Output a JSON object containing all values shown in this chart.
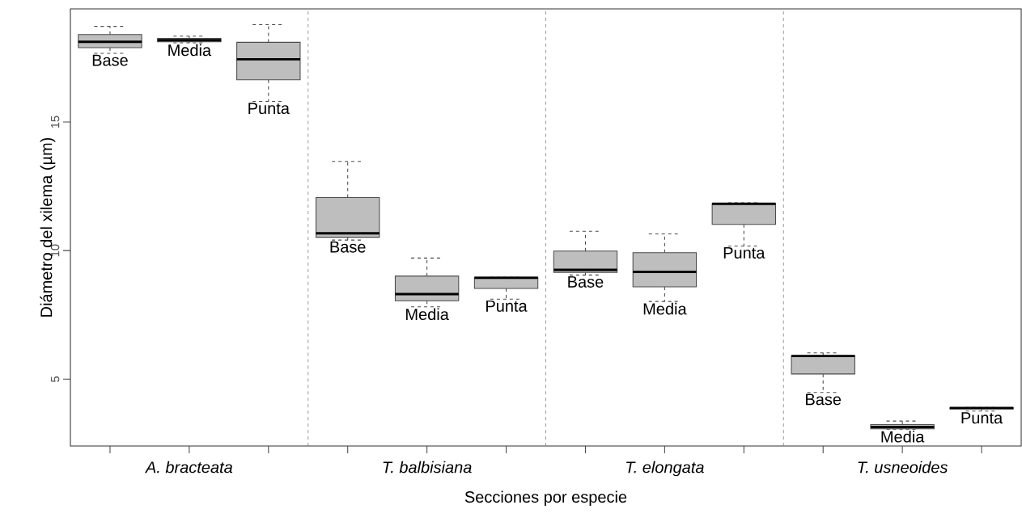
{
  "chart_data": {
    "type": "box",
    "xlabel": "Secciones por especie",
    "ylabel": "Diámetro del xilema (µm)",
    "categories": [
      "A. bracteata",
      "T. balbisiana",
      "T. elongata",
      "T. usneoides"
    ],
    "series": [
      {
        "name": "Base",
        "color": "#bebebe",
        "boxes": [
          {
            "low": 17.67,
            "q1": 17.89,
            "median": 18.12,
            "q3": 18.4,
            "high": 18.72
          },
          {
            "low": 10.41,
            "q1": 10.52,
            "median": 10.67,
            "q3": 12.06,
            "high": 13.47
          },
          {
            "low": 9.05,
            "q1": 9.15,
            "median": 9.25,
            "q3": 9.98,
            "high": 10.75
          },
          {
            "low": 4.48,
            "q1": 5.2,
            "median": 5.9,
            "q3": 5.91,
            "high": 6.02
          }
        ]
      },
      {
        "name": "Media",
        "color": "#bebebe",
        "boxes": [
          {
            "low": 18.08,
            "q1": 18.12,
            "median": 18.18,
            "q3": 18.25,
            "high": 18.34
          },
          {
            "low": 7.81,
            "q1": 8.05,
            "median": 8.31,
            "q3": 9.01,
            "high": 9.71
          },
          {
            "low": 8.02,
            "q1": 8.59,
            "median": 9.17,
            "q3": 9.92,
            "high": 10.65
          },
          {
            "low": 3.05,
            "q1": 3.07,
            "median": 3.14,
            "q3": 3.23,
            "high": 3.37
          }
        ]
      },
      {
        "name": "Punta",
        "color": "#bebebe",
        "boxes": [
          {
            "low": 15.8,
            "q1": 16.64,
            "median": 17.44,
            "q3": 18.1,
            "high": 18.79
          },
          {
            "low": 8.11,
            "q1": 8.53,
            "median": 8.94,
            "q3": 8.97,
            "high": 8.97
          },
          {
            "low": 10.18,
            "q1": 11.02,
            "median": 11.82,
            "q3": 11.83,
            "high": 11.86
          },
          {
            "low": 3.76,
            "q1": 3.84,
            "median": 3.88,
            "q3": 3.89,
            "high": 3.9
          }
        ]
      }
    ],
    "ylim": [
      2.4,
      19.4
    ],
    "yticks": [
      5,
      10,
      15
    ]
  }
}
